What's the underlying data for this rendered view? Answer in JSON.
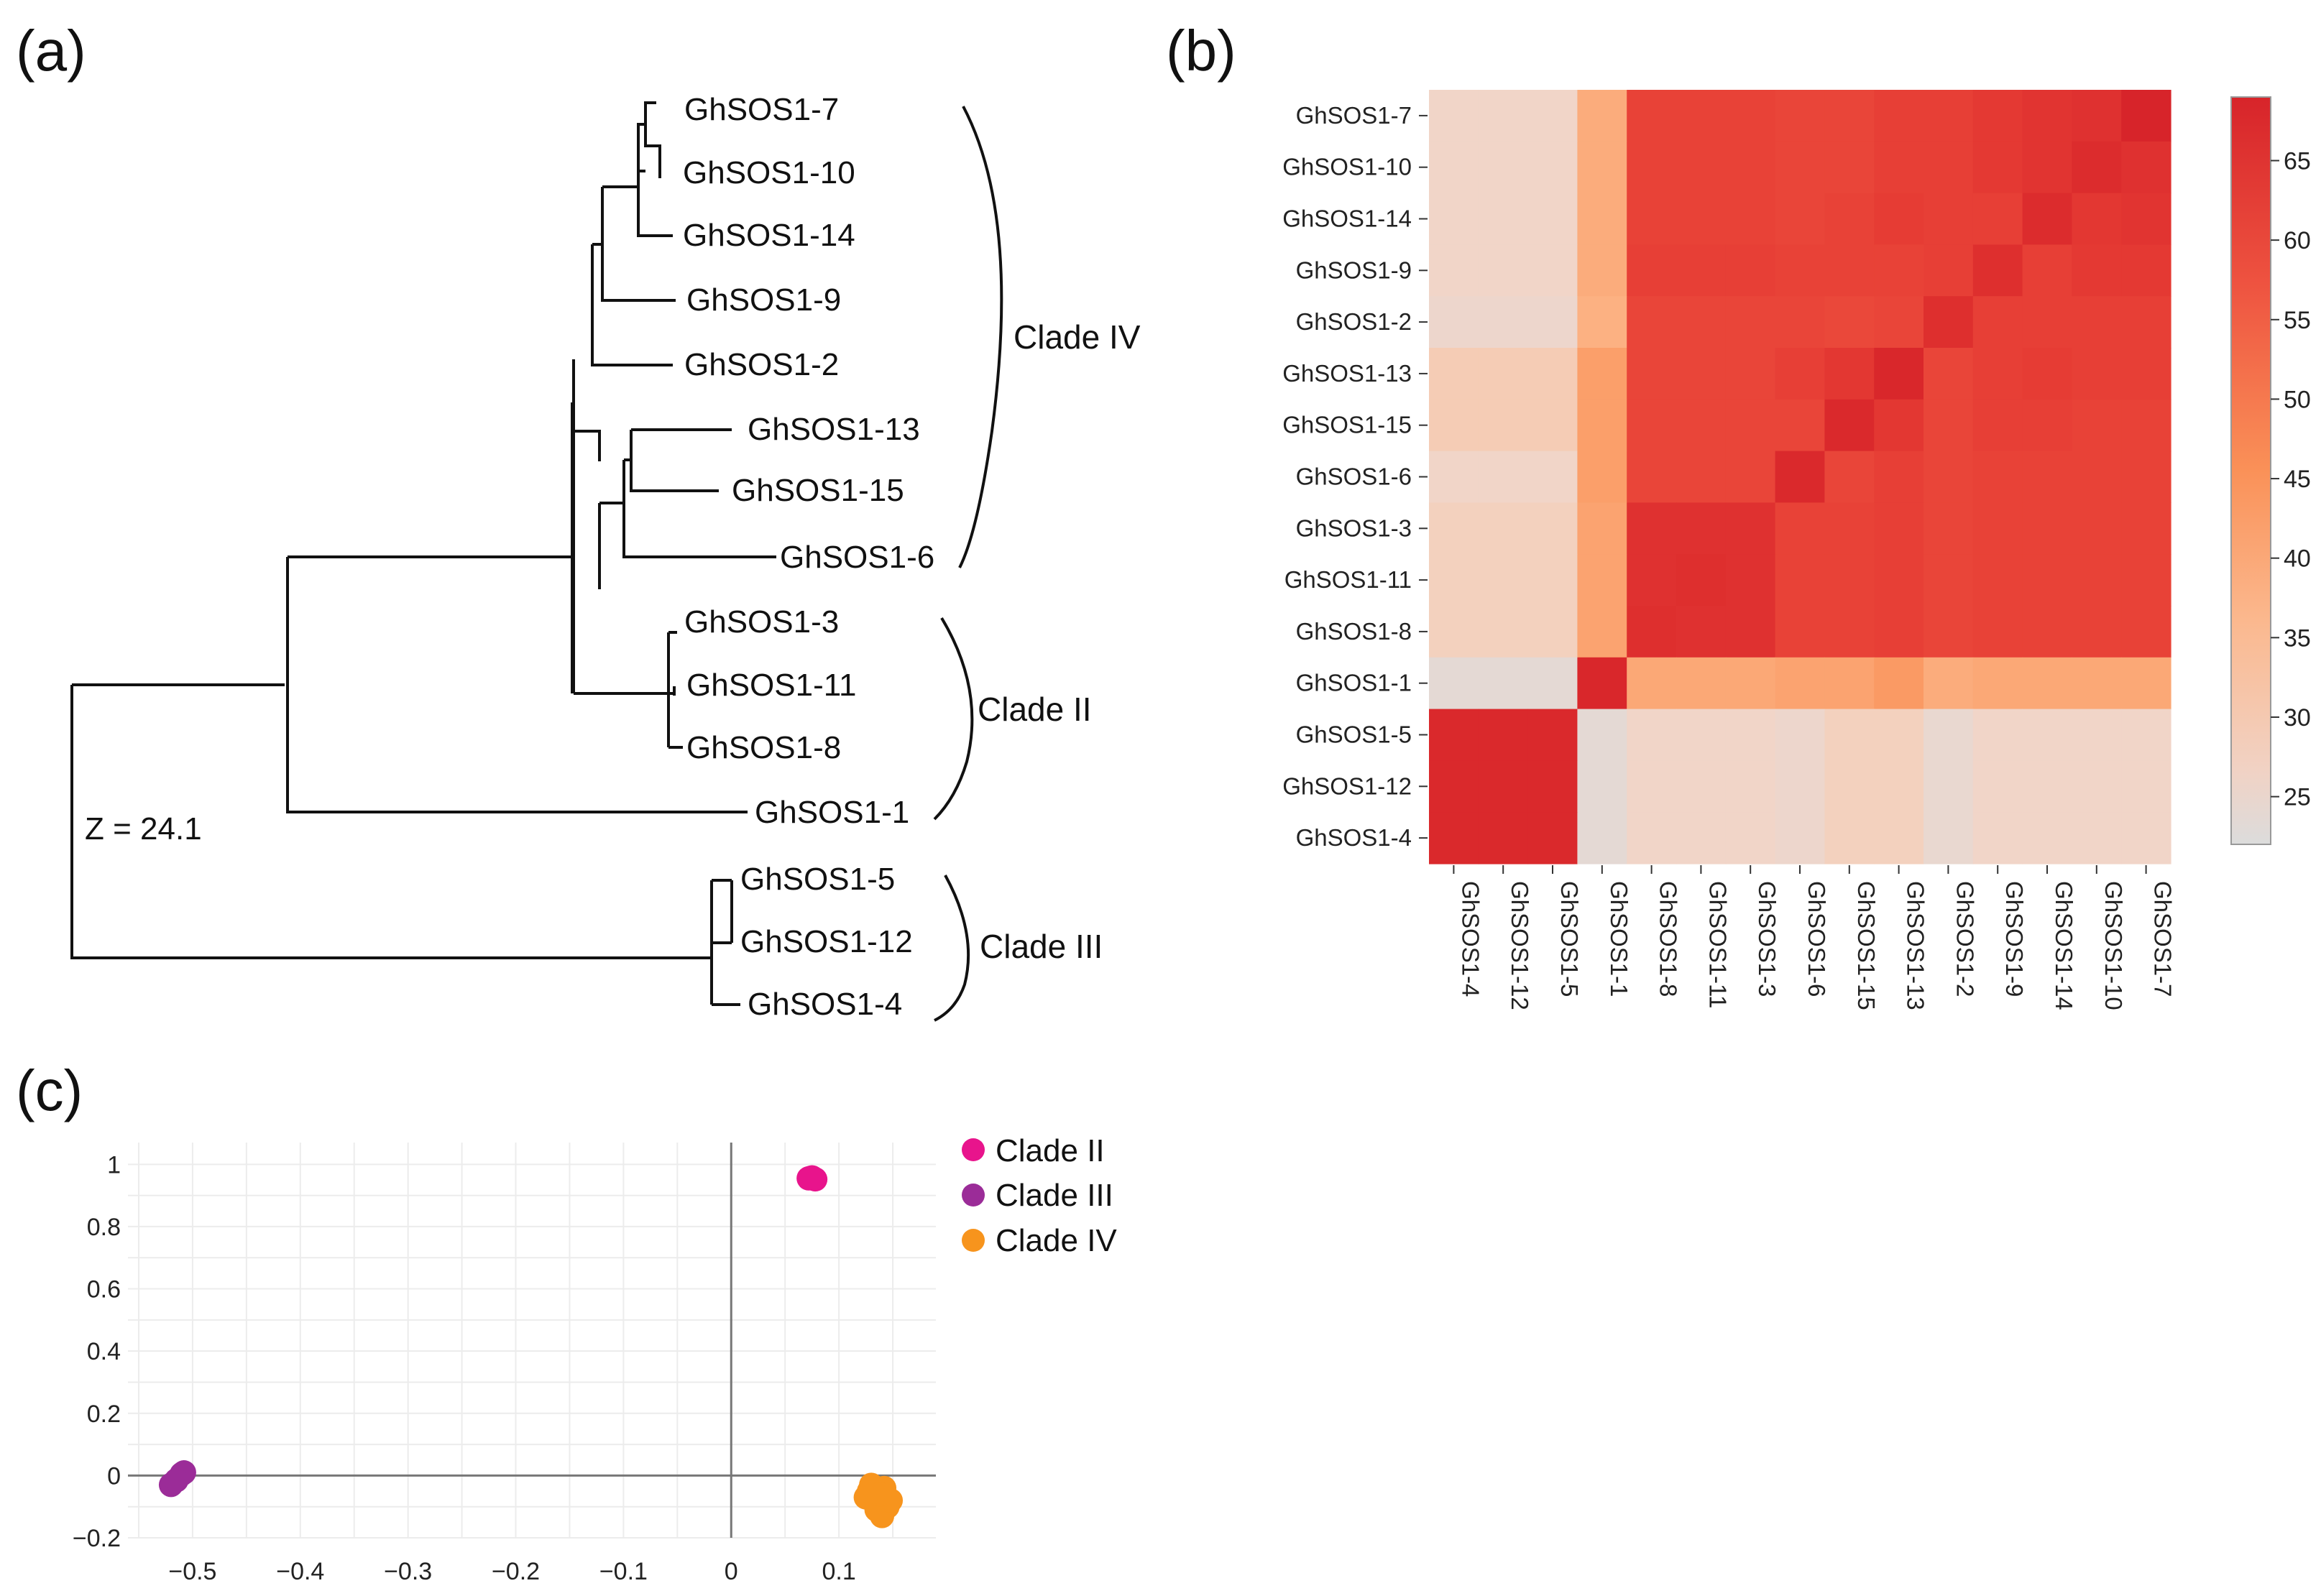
{
  "panels": {
    "a": "(a)",
    "b": "(b)",
    "c": "(c)"
  },
  "tree": {
    "leaves": [
      "GhSOS1-7",
      "GhSOS1-10",
      "GhSOS1-14",
      "GhSOS1-9",
      "GhSOS1-2",
      "GhSOS1-13",
      "GhSOS1-15",
      "GhSOS1-6",
      "GhSOS1-3",
      "GhSOS1-11",
      "GhSOS1-8",
      "GhSOS1-1",
      "GhSOS1-5",
      "GhSOS1-12",
      "GhSOS1-4"
    ],
    "clades": [
      "Clade IV",
      "Clade II",
      "Clade III"
    ],
    "z_label": "Z = 24.1"
  },
  "chart_data": [
    {
      "type": "heatmap",
      "title": "",
      "rows": [
        "GhSOS1-7",
        "GhSOS1-10",
        "GhSOS1-14",
        "GhSOS1-9",
        "GhSOS1-2",
        "GhSOS1-13",
        "GhSOS1-15",
        "GhSOS1-6",
        "GhSOS1-3",
        "GhSOS1-11",
        "GhSOS1-8",
        "GhSOS1-1",
        "GhSOS1-5",
        "GhSOS1-12",
        "GhSOS1-4"
      ],
      "columns": [
        "GhSOS1-4",
        "GhSOS1-12",
        "GhSOS1-5",
        "GhSOS1-1",
        "GhSOS1-8",
        "GhSOS1-11",
        "GhSOS1-3",
        "GhSOS1-6",
        "GhSOS1-15",
        "GhSOS1-13",
        "GhSOS1-2",
        "GhSOS1-9",
        "GhSOS1-14",
        "GhSOS1-10",
        "GhSOS1-7"
      ],
      "values": [
        [
          27,
          27,
          27,
          36,
          58,
          58,
          58,
          57,
          57,
          59,
          59,
          61,
          63,
          64,
          69
        ],
        [
          27,
          27,
          27,
          36,
          58,
          58,
          58,
          57,
          57,
          59,
          59,
          61,
          63,
          66,
          64
        ],
        [
          27,
          27,
          27,
          36,
          58,
          58,
          58,
          57,
          58,
          60,
          59,
          59,
          66,
          62,
          63
        ],
        [
          27,
          27,
          27,
          36,
          59,
          59,
          59,
          58,
          58,
          58,
          59,
          65,
          59,
          61,
          61
        ],
        [
          26,
          26,
          26,
          35,
          57,
          57,
          57,
          57,
          56,
          57,
          65,
          59,
          59,
          59,
          59
        ],
        [
          29,
          29,
          29,
          39,
          57,
          57,
          57,
          59,
          62,
          68,
          57,
          59,
          60,
          59,
          59
        ],
        [
          29,
          29,
          29,
          39,
          57,
          57,
          57,
          57,
          67,
          62,
          57,
          59,
          59,
          58,
          58
        ],
        [
          27,
          27,
          27,
          39,
          57,
          57,
          57,
          67,
          57,
          59,
          57,
          58,
          58,
          58,
          58
        ],
        [
          28,
          28,
          28,
          38,
          64,
          64,
          64,
          58,
          58,
          59,
          57,
          58,
          58,
          58,
          58
        ],
        [
          28,
          28,
          28,
          38,
          64,
          65,
          64,
          58,
          58,
          59,
          57,
          58,
          58,
          58,
          58
        ],
        [
          28,
          28,
          28,
          38,
          65,
          64,
          64,
          58,
          58,
          59,
          57,
          58,
          58,
          58,
          58
        ],
        [
          24,
          24,
          24,
          68,
          37,
          37,
          37,
          38,
          38,
          40,
          36,
          37,
          37,
          37,
          37
        ],
        [
          67,
          67,
          67,
          24,
          27,
          27,
          27,
          26,
          28,
          28,
          25,
          27,
          27,
          27,
          27
        ],
        [
          67,
          67,
          67,
          24,
          27,
          27,
          27,
          26,
          28,
          28,
          25,
          27,
          27,
          27,
          27
        ],
        [
          67,
          67,
          67,
          24,
          27,
          27,
          27,
          26,
          28,
          28,
          25,
          27,
          27,
          27,
          27
        ]
      ],
      "colorbar": {
        "ticks": [
          25,
          30,
          35,
          40,
          45,
          50,
          55,
          60,
          65
        ],
        "min": 22,
        "max": 69,
        "low_color": "#dddddd",
        "high_color": "#d7242a"
      }
    },
    {
      "type": "scatter",
      "title": "",
      "xlabel": "",
      "ylabel": "",
      "xlim": [
        -0.56,
        0.19
      ],
      "ylim": [
        -0.2,
        1.07
      ],
      "xticks": [
        -0.5,
        -0.4,
        -0.3,
        -0.2,
        -0.1,
        0,
        0.1
      ],
      "xtick_labels": [
        "−0.5",
        "−0.4",
        "−0.3",
        "−0.2",
        "−0.1",
        "0",
        "0.1"
      ],
      "yticks": [
        -0.2,
        0,
        0.2,
        0.4,
        0.6,
        0.8,
        1
      ],
      "ytick_labels": [
        "−0.2",
        "0",
        "0.2",
        "0.4",
        "0.6",
        "0.8",
        "1"
      ],
      "series": [
        {
          "name": "Clade II",
          "color": "#e8148c",
          "points": [
            [
              0.072,
              0.955
            ],
            [
              0.078,
              0.952
            ],
            [
              0.075,
              0.958
            ]
          ]
        },
        {
          "name": "Clade III",
          "color": "#9b2c98",
          "points": [
            [
              -0.51,
              0.005
            ],
            [
              -0.508,
              0.01
            ],
            [
              -0.52,
              -0.03
            ],
            [
              -0.515,
              -0.015
            ]
          ]
        },
        {
          "name": "Clade IV",
          "color": "#f7941d",
          "points": [
            [
              0.125,
              -0.07
            ],
            [
              0.132,
              -0.06
            ],
            [
              0.138,
              -0.09
            ],
            [
              0.142,
              -0.04
            ],
            [
              0.145,
              -0.1
            ],
            [
              0.14,
              -0.13
            ],
            [
              0.135,
              -0.11
            ],
            [
              0.128,
              -0.05
            ],
            [
              0.148,
              -0.08
            ],
            [
              0.13,
              -0.03
            ],
            [
              0.138,
              -0.06
            ]
          ]
        }
      ],
      "legend": [
        "Clade II",
        "Clade III",
        "Clade IV"
      ],
      "legend_position": "top-right"
    }
  ]
}
